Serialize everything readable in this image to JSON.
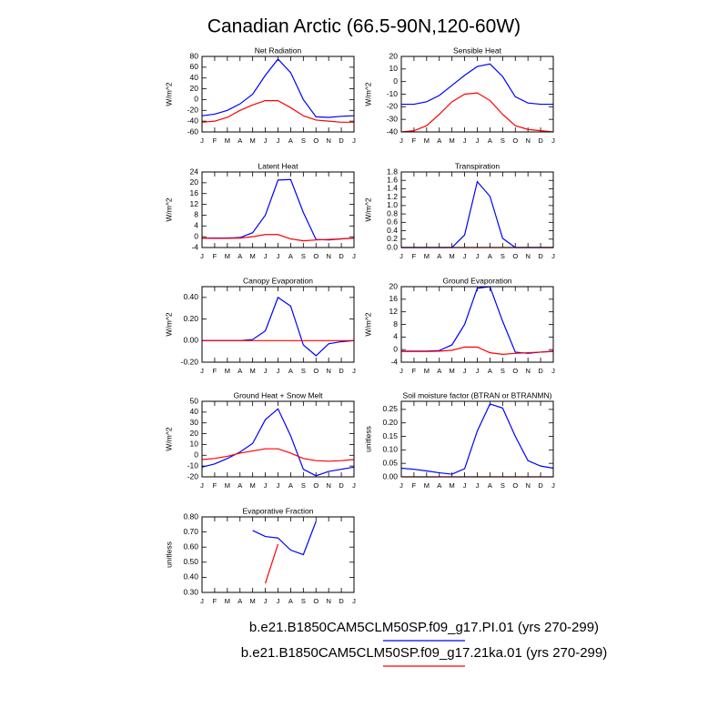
{
  "title": "Canadian Arctic (66.5-90N,120-60W)",
  "legend": [
    {
      "name": "b.e21.B1850CAM5CLM50SP.f09_g17.PI.01 (yrs 270-299)",
      "color": "#0000ff"
    },
    {
      "name": "b.e21.B1850CAM5CLM50SP.f09_g17.21ka.01 (yrs 270-299)",
      "color": "#ff0000"
    }
  ],
  "chart_data": [
    {
      "type": "line",
      "title": "Net Radiation",
      "ylabel": "W/m^2",
      "categories": [
        "J",
        "F",
        "M",
        "A",
        "M",
        "J",
        "J",
        "A",
        "S",
        "O",
        "N",
        "D",
        "J"
      ],
      "ylim": [
        -60,
        80
      ],
      "yticks": [
        -60,
        -40,
        -20,
        0,
        20,
        40,
        60,
        80
      ],
      "series": [
        {
          "color": "#0000ff",
          "values": [
            -30,
            -27,
            -20,
            -8,
            10,
            45,
            75,
            50,
            0,
            -32,
            -33,
            -31,
            -30
          ]
        },
        {
          "color": "#ff0000",
          "values": [
            -42,
            -40,
            -33,
            -20,
            -10,
            -2,
            -2,
            -15,
            -30,
            -38,
            -40,
            -42,
            -42
          ]
        }
      ]
    },
    {
      "type": "line",
      "title": "Sensible Heat",
      "ylabel": "W/m^2",
      "categories": [
        "J",
        "F",
        "M",
        "A",
        "M",
        "J",
        "J",
        "A",
        "S",
        "O",
        "N",
        "D",
        "J"
      ],
      "ylim": [
        -40,
        20
      ],
      "yticks": [
        -40,
        -30,
        -20,
        -10,
        0,
        10,
        20
      ],
      "series": [
        {
          "color": "#0000ff",
          "values": [
            -18,
            -18,
            -16,
            -11,
            -3,
            5,
            12,
            14,
            4,
            -12,
            -17,
            -18,
            -18
          ]
        },
        {
          "color": "#ff0000",
          "values": [
            -40,
            -39,
            -35,
            -26,
            -16,
            -10,
            -9,
            -15,
            -26,
            -35,
            -38,
            -39,
            -40
          ]
        }
      ]
    },
    {
      "type": "line",
      "title": "Latent Heat",
      "ylabel": "W/m^2",
      "categories": [
        "J",
        "F",
        "M",
        "A",
        "M",
        "J",
        "J",
        "A",
        "S",
        "O",
        "N",
        "D",
        "J"
      ],
      "ylim": [
        -4,
        24
      ],
      "yticks": [
        -4,
        0,
        4,
        8,
        12,
        16,
        20,
        24
      ],
      "series": [
        {
          "color": "#0000ff",
          "values": [
            -0.5,
            -0.5,
            -0.5,
            -0.3,
            1.5,
            8,
            21,
            21.2,
            9,
            -1,
            -1.2,
            -0.8,
            -0.5
          ]
        },
        {
          "color": "#ff0000",
          "values": [
            -0.5,
            -0.6,
            -0.6,
            -0.5,
            0,
            0.8,
            0.8,
            -0.8,
            -1.5,
            -1.2,
            -1,
            -0.8,
            -0.5
          ]
        }
      ]
    },
    {
      "type": "line",
      "title": "Transpiration",
      "ylabel": "W/m^2",
      "categories": [
        "J",
        "F",
        "M",
        "A",
        "M",
        "J",
        "J",
        "A",
        "S",
        "O",
        "N",
        "D",
        "J"
      ],
      "ylim": [
        0,
        1.8
      ],
      "yticks": [
        {
          "value": 0,
          "label": "0.0"
        },
        0.2,
        0.4,
        0.6,
        0.8,
        {
          "value": 1,
          "label": "1.0"
        },
        1.2,
        1.4,
        1.6,
        1.8
      ],
      "series": [
        {
          "color": "#0000ff",
          "values": [
            0,
            0,
            0,
            0,
            0,
            0.3,
            1.57,
            1.22,
            0.22,
            0,
            0,
            0,
            0
          ]
        },
        {
          "color": "#ff0000",
          "values": [
            0,
            0,
            0,
            0,
            0,
            0,
            0,
            0,
            0,
            0,
            0,
            0,
            0
          ]
        }
      ]
    },
    {
      "type": "line",
      "title": "Canopy Evaporation",
      "ylabel": "W/m^2",
      "categories": [
        "J",
        "F",
        "M",
        "A",
        "M",
        "J",
        "J",
        "A",
        "S",
        "O",
        "N",
        "D",
        "J"
      ],
      "ylim": [
        -0.2,
        0.5
      ],
      "yticks": [
        {
          "value": -0.2,
          "label": "-0.20"
        },
        {
          "value": 0,
          "label": "0.00"
        },
        {
          "value": 0.2,
          "label": "0.20"
        },
        {
          "value": 0.4,
          "label": "0.40"
        }
      ],
      "series": [
        {
          "color": "#0000ff",
          "values": [
            0,
            0,
            0,
            0,
            0.01,
            0.09,
            0.4,
            0.32,
            -0.04,
            -0.14,
            -0.03,
            -0.01,
            0
          ]
        },
        {
          "color": "#ff0000",
          "values": [
            0,
            0,
            0,
            0,
            0,
            0,
            0,
            0,
            0,
            0,
            0,
            0,
            0
          ]
        }
      ]
    },
    {
      "type": "line",
      "title": "Ground Evaporation",
      "ylabel": "W/m^2",
      "categories": [
        "J",
        "F",
        "M",
        "A",
        "M",
        "J",
        "J",
        "A",
        "S",
        "O",
        "N",
        "D",
        "J"
      ],
      "ylim": [
        -4,
        20
      ],
      "yticks": [
        -4,
        0,
        4,
        8,
        12,
        16,
        20
      ],
      "series": [
        {
          "color": "#0000ff",
          "values": [
            -0.5,
            -0.5,
            -0.5,
            -0.3,
            1.5,
            8,
            19.5,
            20,
            9,
            -0.8,
            -1.2,
            -0.8,
            -0.5
          ]
        },
        {
          "color": "#ff0000",
          "values": [
            -0.6,
            -0.6,
            -0.6,
            -0.5,
            -0.2,
            0.8,
            0.8,
            -1,
            -1.5,
            -1.2,
            -1,
            -0.8,
            -0.6
          ]
        }
      ]
    },
    {
      "type": "line",
      "title": "Ground Heat + Snow Melt",
      "ylabel": "W/m^2",
      "categories": [
        "J",
        "F",
        "M",
        "A",
        "M",
        "J",
        "J",
        "A",
        "S",
        "O",
        "N",
        "D",
        "J"
      ],
      "ylim": [
        -20,
        50
      ],
      "yticks": [
        -20,
        -10,
        0,
        10,
        20,
        30,
        40,
        50
      ],
      "series": [
        {
          "color": "#0000ff",
          "values": [
            -11,
            -8,
            -3,
            3,
            11,
            33,
            43,
            18,
            -13,
            -19,
            -15,
            -13,
            -11
          ]
        },
        {
          "color": "#ff0000",
          "values": [
            -4,
            -3,
            -1,
            2,
            4,
            6,
            6,
            2,
            -3,
            -5,
            -5.5,
            -5,
            -4
          ]
        }
      ]
    },
    {
      "type": "line",
      "title": "Soil moisture factor (BTRAN or BTRANMN)",
      "ylabel": "unitless",
      "categories": [
        "J",
        "F",
        "M",
        "A",
        "M",
        "J",
        "J",
        "A",
        "S",
        "O",
        "N",
        "D",
        "J"
      ],
      "ylim": [
        0,
        0.28
      ],
      "yticks": [
        {
          "value": 0,
          "label": "0.00"
        },
        0.05,
        {
          "value": 0.1,
          "label": "0.10"
        },
        0.15,
        {
          "value": 0.2,
          "label": "0.20"
        },
        0.25
      ],
      "series": [
        {
          "color": "#0000ff",
          "values": [
            0.032,
            0.028,
            0.022,
            0.015,
            0.01,
            0.03,
            0.17,
            0.27,
            0.255,
            0.15,
            0.06,
            0.04,
            0.032
          ]
        },
        {
          "color": "#ff0000",
          "values": [
            0,
            0,
            0,
            0,
            0,
            0,
            0,
            0,
            0,
            0,
            0,
            0,
            0
          ]
        }
      ]
    },
    {
      "type": "line",
      "title": "Evaporative Fraction",
      "ylabel": "unitless",
      "categories": [
        "J",
        "F",
        "M",
        "A",
        "M",
        "J",
        "J",
        "A",
        "S",
        "O",
        "N",
        "D",
        "J"
      ],
      "ylim": [
        0.3,
        0.8
      ],
      "yticks": [
        {
          "value": 0.3,
          "label": "0.30"
        },
        {
          "value": 0.4,
          "label": "0.40"
        },
        {
          "value": 0.5,
          "label": "0.50"
        },
        {
          "value": 0.6,
          "label": "0.60"
        },
        {
          "value": 0.7,
          "label": "0.70"
        },
        {
          "value": 0.8,
          "label": "0.80"
        }
      ],
      "series": [
        {
          "color": "#0000ff",
          "values": [
            null,
            null,
            null,
            null,
            0.71,
            0.67,
            0.66,
            0.58,
            0.55,
            0.77,
            null,
            null,
            null
          ]
        },
        {
          "color": "#ff0000",
          "values": [
            null,
            null,
            null,
            null,
            null,
            0.36,
            0.62,
            null,
            null,
            null,
            null,
            null,
            null
          ]
        }
      ]
    }
  ]
}
